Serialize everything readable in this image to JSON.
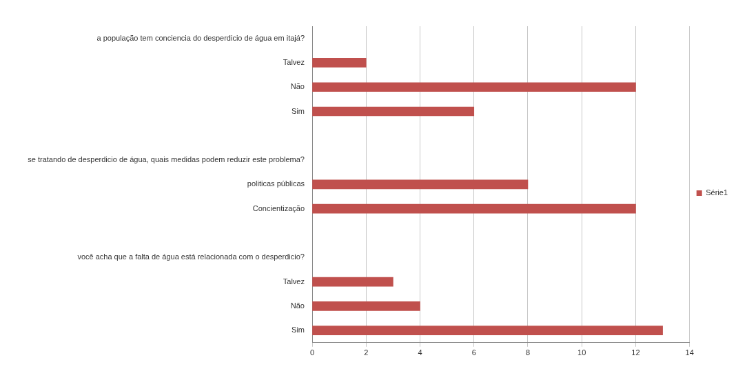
{
  "chart_data": {
    "type": "bar",
    "orientation": "horizontal",
    "categories": [
      "a população tem conciencia do desperdicio de água em itajá?",
      "Talvez",
      "Não",
      "Sim",
      null,
      "se tratando de desperdicio de água, quais medidas podem reduzir este problema?",
      "politicas públicas",
      "Concientização",
      null,
      "você acha que a falta de água está relacionada com o desperdicio?",
      "Talvez",
      "Não",
      "Sim"
    ],
    "series": [
      {
        "name": "Série1",
        "color": "#c0504d",
        "values": [
          null,
          2,
          12,
          6,
          null,
          null,
          8,
          12,
          null,
          null,
          3,
          4,
          13
        ]
      }
    ],
    "xlim": [
      0,
      14
    ],
    "xticks": [
      0,
      2,
      4,
      6,
      8,
      10,
      12,
      14
    ],
    "grid": "x",
    "legend": "right"
  }
}
